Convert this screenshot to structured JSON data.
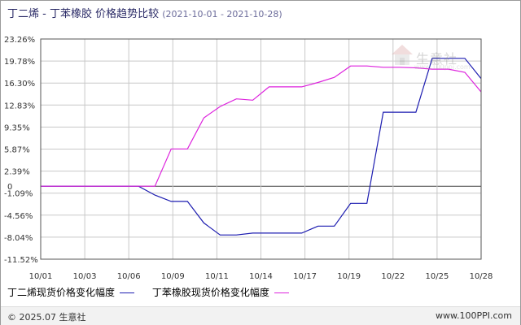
{
  "title": {
    "main": "丁二烯 - 丁苯橡胶 价格趋势比较",
    "range": "(2021-10-01 - 2021-10-28)"
  },
  "chart_data": {
    "type": "line",
    "y_ticks": [
      "23.26%",
      "19.78%",
      "16.30%",
      "12.83%",
      "9.35%",
      "5.87%",
      "2.39%",
      "-1.09%",
      "-4.56%",
      "-8.04%",
      "-11.52%"
    ],
    "y_tick_values": [
      23.26,
      19.78,
      16.3,
      12.83,
      9.35,
      5.87,
      2.39,
      -1.09,
      -4.56,
      -8.04,
      -11.52
    ],
    "zero_label": "0",
    "ylim": [
      -11.52,
      23.26
    ],
    "x_ticks": [
      "10/01",
      "10/03",
      "10/06",
      "10/09",
      "10/11",
      "10/14",
      "10/17",
      "10/19",
      "10/22",
      "10/25",
      "10/28"
    ],
    "grid": true,
    "series": [
      {
        "name": "丁二烯现货价格变化幅度",
        "color": "#1c1cb0",
        "points": [
          [
            0,
            0
          ],
          [
            6,
            0
          ],
          [
            7,
            -1.4
          ],
          [
            8,
            -2.4
          ],
          [
            9,
            -2.4
          ],
          [
            10,
            -5.8
          ],
          [
            11,
            -7.7
          ],
          [
            12,
            -7.7
          ],
          [
            13,
            -7.4
          ],
          [
            16,
            -7.4
          ],
          [
            17,
            -6.3
          ],
          [
            18,
            -6.3
          ],
          [
            19,
            -2.7
          ],
          [
            20,
            -2.7
          ],
          [
            21,
            11.7
          ],
          [
            22,
            11.7
          ],
          [
            23,
            11.7
          ],
          [
            24,
            20.2
          ],
          [
            25,
            20.2
          ],
          [
            26,
            20.2
          ],
          [
            27,
            17.0
          ]
        ]
      },
      {
        "name": "丁苯橡胶现货价格变化幅度",
        "color": "#dd22dd",
        "points": [
          [
            0,
            0
          ],
          [
            7,
            0
          ],
          [
            8,
            5.9
          ],
          [
            9,
            5.9
          ],
          [
            10,
            10.8
          ],
          [
            11,
            12.6
          ],
          [
            12,
            13.8
          ],
          [
            13,
            13.6
          ],
          [
            14,
            15.7
          ],
          [
            15,
            15.7
          ],
          [
            16,
            15.7
          ],
          [
            17,
            16.4
          ],
          [
            18,
            17.2
          ],
          [
            19,
            19.0
          ],
          [
            20,
            19.0
          ],
          [
            21,
            18.8
          ],
          [
            22,
            18.8
          ],
          [
            23,
            18.7
          ],
          [
            24,
            18.5
          ],
          [
            25,
            18.5
          ],
          [
            26,
            18.0
          ],
          [
            27,
            14.9
          ]
        ]
      }
    ]
  },
  "legend": {
    "items": [
      {
        "label": "丁二烯现货价格变化幅度",
        "color": "#1c1cb0"
      },
      {
        "label": "丁苯橡胶现货价格变化幅度",
        "color": "#dd22dd"
      }
    ]
  },
  "watermark": {
    "text": "生意社",
    "url": "www.100ppi.com"
  },
  "footer": {
    "left": "© 2025.07 生意社",
    "right": "www.100PPI.com"
  }
}
